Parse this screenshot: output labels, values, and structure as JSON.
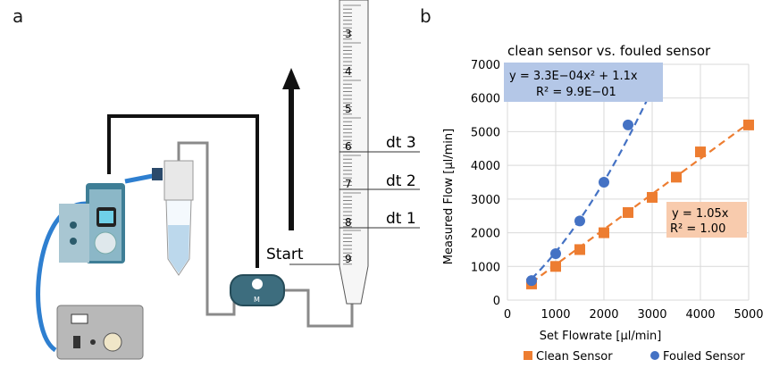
{
  "panel_a": {
    "letter": "a",
    "arrow_label": "Start",
    "time_labels": [
      "dt 3",
      "dt 2",
      "dt 1"
    ],
    "tube_numbers": [
      "3",
      "4",
      "5",
      "6",
      "7",
      "8",
      "9"
    ],
    "valve_label": "M"
  },
  "panel_b": {
    "letter": "b",
    "legend": [
      {
        "name": "Clean Sensor",
        "marker": "square",
        "color": "#ed7d31"
      },
      {
        "name": "Fouled Sensor",
        "marker": "circle",
        "color": "#4472c4"
      }
    ],
    "fouled_fit": {
      "line1": "y = 3.3E−04x² + 1.1x",
      "line2": "R² = 9.9E−01",
      "box_color": "#b4c7e7"
    },
    "clean_fit": {
      "line1": "y = 1.05x",
      "line2": "R² = 1.00",
      "box_color": "#f8cbad"
    }
  },
  "chart_data": {
    "type": "scatter",
    "title": "clean sensor vs. fouled sensor",
    "xlabel": "Set Flowrate [µl/min]",
    "ylabel": "Measured Flow [µl/min]",
    "xlim": [
      0,
      5000
    ],
    "ylim": [
      0,
      7000
    ],
    "xticks": [
      0,
      1000,
      2000,
      3000,
      4000,
      5000
    ],
    "yticks": [
      0,
      1000,
      2000,
      3000,
      4000,
      5000,
      6000,
      7000
    ],
    "grid": true,
    "legend_position": "bottom",
    "series": [
      {
        "name": "Clean Sensor",
        "marker": "square",
        "color": "#ed7d31",
        "x": [
          500,
          1000,
          1500,
          2000,
          2500,
          3000,
          3500,
          4000,
          5000
        ],
        "y": [
          480,
          1000,
          1500,
          2000,
          2600,
          3050,
          3650,
          4400,
          5200
        ],
        "trend": {
          "kind": "linear",
          "a": 1.05,
          "x_range": [
            500,
            5000
          ]
        }
      },
      {
        "name": "Fouled Sensor",
        "marker": "circle",
        "color": "#4472c4",
        "x": [
          500,
          1000,
          1500,
          2000,
          2500,
          3000
        ],
        "y": [
          580,
          1380,
          2350,
          3500,
          5200,
          6100
        ],
        "trend": {
          "kind": "quadratic",
          "a2": 0.00033,
          "a1": 1.1,
          "x_range": [
            500,
            3000
          ]
        }
      }
    ]
  }
}
